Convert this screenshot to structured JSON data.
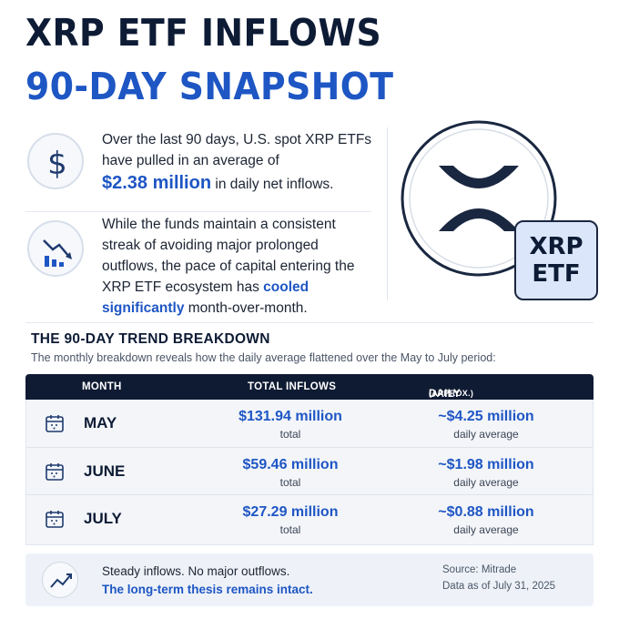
{
  "header": {
    "title_line1": "XRP ETF INFLOWS",
    "title_line2": "90-DAY SNAPSHOT"
  },
  "icons": {
    "dollar": "dollar-icon",
    "declining_chart": "declining-chart-icon",
    "xrp_logo": "xrp-logo-icon",
    "calendar": "calendar-icon",
    "trend_line": "trend-line-icon"
  },
  "intro": {
    "para1_part1": "Over the last 90 days, U.S. spot XRP ETFs",
    "para1_part2": "have pulled in an average of",
    "para1_highlight": "$2.38 million",
    "para1_part3": "in daily net inflows.",
    "para2_line1": "While the funds maintain a consistent",
    "para2_line2": "streak of avoiding major prolonged",
    "para2_line3": "outflows, the pace of capital entering the",
    "para2_line4a": "XRP ETF ecosystem has",
    "para2_highlight1": "cooled",
    "para2_highlight2": "significantly",
    "para2_line5": "month-over-month."
  },
  "badge": {
    "line1": "XRP",
    "line2": "ETF"
  },
  "trend": {
    "title": "THE 90-DAY TREND BREAKDOWN",
    "subtitle": "The monthly breakdown reveals how the daily average flattened over the May to July period:"
  },
  "table": {
    "headers": {
      "month": "MONTH",
      "total": "TOTAL INFLOWS",
      "daily": "DAILY AVERAGE",
      "daily_note": "(APPROX.)"
    },
    "rows": [
      {
        "month": "MAY",
        "total": "$131.94 million",
        "total_sub": "total",
        "avg": "~$4.25 million",
        "avg_sub": "daily average"
      },
      {
        "month": "JUNE",
        "total": "$59.46 million",
        "total_sub": "total",
        "avg": "~$1.98 million",
        "avg_sub": "daily average"
      },
      {
        "month": "JULY",
        "total": "$27.29 million",
        "total_sub": "total",
        "avg": "~$0.88 million",
        "avg_sub": "daily average"
      }
    ]
  },
  "footer": {
    "line1": "Steady inflows. No major outflows.",
    "line2": "The long-term thesis remains intact.",
    "source": "Source: Mitrade",
    "date": "Data as of July 31, 2025"
  },
  "colors": {
    "navy": "#0d1b35",
    "accent_blue": "#1e56c4",
    "table_header": "#0f1b33",
    "badge_bg": "#dbe6fb"
  }
}
